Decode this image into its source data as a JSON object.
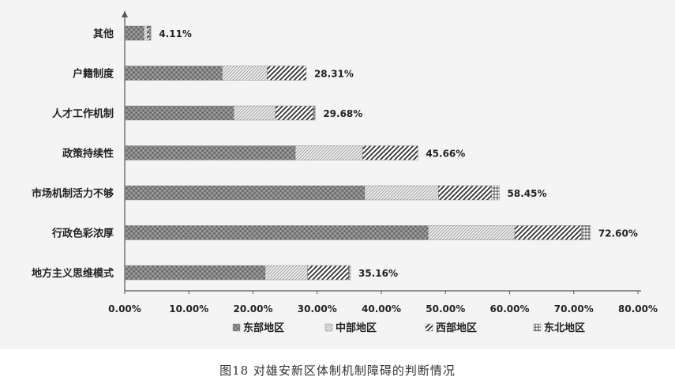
{
  "chart_data": {
    "type": "bar",
    "orientation": "horizontal",
    "stacked": true,
    "categories": [
      "其他",
      "户籍制度",
      "人才工作机制",
      "政策持续性",
      "市场机制活力不够",
      "行政色彩浓厚",
      "地方主义思维模式"
    ],
    "series": [
      {
        "name": "东部地区",
        "values": [
          3.0,
          15.2,
          17.0,
          26.6,
          37.4,
          47.3,
          21.9
        ]
      },
      {
        "name": "中部地区",
        "values": [
          0.5,
          7.0,
          6.5,
          10.5,
          11.5,
          13.5,
          6.6
        ]
      },
      {
        "name": "西部地区",
        "values": [
          0.3,
          6.1,
          5.9,
          8.6,
          8.3,
          10.4,
          6.4
        ]
      },
      {
        "name": "东北地区",
        "values": [
          0.3,
          0.0,
          0.3,
          0.0,
          1.2,
          1.4,
          0.3
        ]
      }
    ],
    "totals": [
      "4.11%",
      "28.31%",
      "29.68%",
      "45.66%",
      "58.45%",
      "72.60%",
      "35.16%"
    ],
    "xlim": [
      0,
      80
    ],
    "xticks": [
      "0.00%",
      "10.00%",
      "20.00%",
      "30.00%",
      "40.00%",
      "50.00%",
      "60.00%",
      "70.00%",
      "80.00%"
    ],
    "legend_position": "bottom",
    "grid": false
  },
  "caption": "图18   对雄安新区体制机制障碍的判断情况"
}
